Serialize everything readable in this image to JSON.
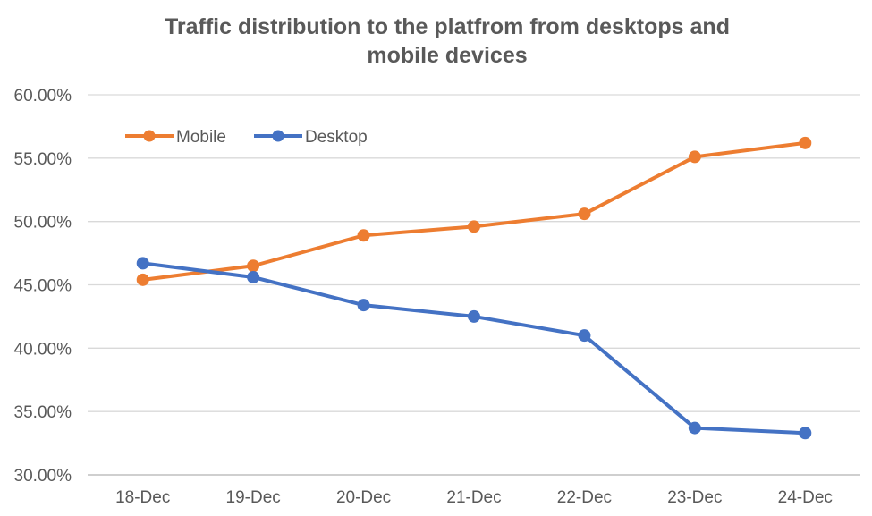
{
  "chart_data": {
    "type": "line",
    "title_line1": "Traffic distribution to the platfrom from desktops and",
    "title_line2": "mobile devices",
    "categories": [
      "18-Dec",
      "19-Dec",
      "20-Dec",
      "21-Dec",
      "22-Dec",
      "23-Dec",
      "24-Dec"
    ],
    "y_ticks": [
      "30.00%",
      "35.00%",
      "40.00%",
      "45.00%",
      "50.00%",
      "55.00%",
      "60.00%"
    ],
    "ylim": [
      30,
      60
    ],
    "grid": true,
    "legend_position": "top-left",
    "series": [
      {
        "name": "Mobile",
        "color": "#ED7D31",
        "values": [
          45.4,
          46.5,
          48.9,
          49.6,
          50.6,
          55.1,
          56.2
        ]
      },
      {
        "name": "Desktop",
        "color": "#4472C4",
        "values": [
          46.7,
          45.6,
          43.4,
          42.5,
          41.0,
          33.7,
          33.3
        ]
      }
    ]
  }
}
